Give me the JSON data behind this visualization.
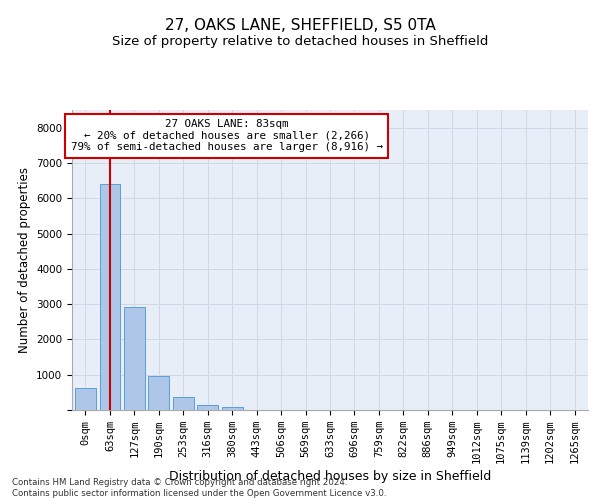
{
  "title1": "27, OAKS LANE, SHEFFIELD, S5 0TA",
  "title2": "Size of property relative to detached houses in Sheffield",
  "xlabel": "Distribution of detached houses by size in Sheffield",
  "ylabel": "Number of detached properties",
  "bar_categories": [
    "0sqm",
    "63sqm",
    "127sqm",
    "190sqm",
    "253sqm",
    "316sqm",
    "380sqm",
    "443sqm",
    "506sqm",
    "569sqm",
    "633sqm",
    "696sqm",
    "759sqm",
    "822sqm",
    "886sqm",
    "949sqm",
    "1012sqm",
    "1075sqm",
    "1139sqm",
    "1202sqm",
    "1265sqm"
  ],
  "bar_values": [
    620,
    6400,
    2920,
    960,
    360,
    150,
    75,
    0,
    0,
    0,
    0,
    0,
    0,
    0,
    0,
    0,
    0,
    0,
    0,
    0,
    0
  ],
  "bar_color": "#aec6e8",
  "bar_edgecolor": "#5a9fd4",
  "vline_color": "#cc0000",
  "annotation_text": "27 OAKS LANE: 83sqm\n← 20% of detached houses are smaller (2,266)\n79% of semi-detached houses are larger (8,916) →",
  "annotation_box_color": "#ffffff",
  "annotation_box_edgecolor": "#cc0000",
  "ylim": [
    0,
    8500
  ],
  "yticks": [
    0,
    1000,
    2000,
    3000,
    4000,
    5000,
    6000,
    7000,
    8000
  ],
  "grid_color": "#d0d8e8",
  "background_color": "#e8eef8",
  "footer_line1": "Contains HM Land Registry data © Crown copyright and database right 2024.",
  "footer_line2": "Contains public sector information licensed under the Open Government Licence v3.0.",
  "title1_fontsize": 11,
  "title2_fontsize": 9.5,
  "xlabel_fontsize": 9,
  "ylabel_fontsize": 8.5,
  "tick_fontsize": 7.5,
  "annot_fontsize": 7.8,
  "footer_fontsize": 6.2
}
